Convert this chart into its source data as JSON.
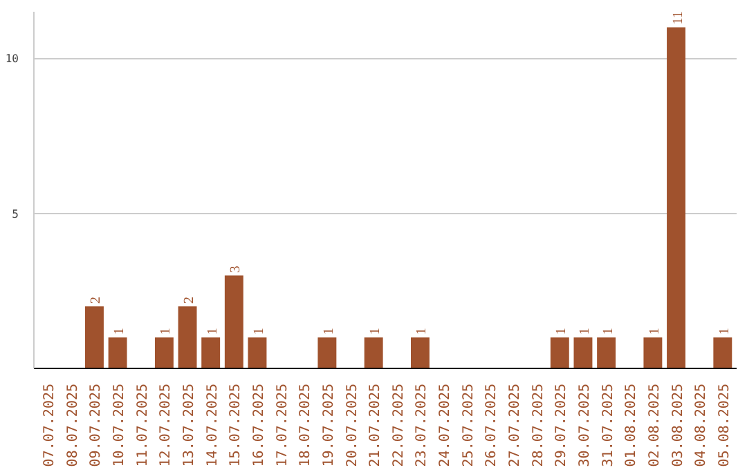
{
  "chart_data": {
    "type": "bar",
    "categories": [
      "07.07.2025",
      "08.07.2025",
      "09.07.2025",
      "10.07.2025",
      "11.07.2025",
      "12.07.2025",
      "13.07.2025",
      "14.07.2025",
      "15.07.2025",
      "16.07.2025",
      "17.07.2025",
      "18.07.2025",
      "19.07.2025",
      "20.07.2025",
      "21.07.2025",
      "22.07.2025",
      "23.07.2025",
      "24.07.2025",
      "25.07.2025",
      "26.07.2025",
      "27.07.2025",
      "28.07.2025",
      "29.07.2025",
      "30.07.2025",
      "31.07.2025",
      "01.08.2025",
      "02.08.2025",
      "03.08.2025",
      "04.08.2025",
      "05.08.2025"
    ],
    "values": [
      0,
      0,
      2,
      1,
      0,
      1,
      2,
      1,
      3,
      1,
      0,
      0,
      1,
      0,
      1,
      0,
      1,
      0,
      0,
      0,
      0,
      0,
      1,
      1,
      1,
      0,
      1,
      11,
      0,
      1
    ],
    "value_labels": [
      null,
      null,
      "2",
      "1",
      null,
      "1",
      "2",
      "1",
      "3",
      "1",
      null,
      null,
      "1",
      null,
      "1",
      null,
      "1",
      null,
      null,
      null,
      null,
      null,
      "1",
      "1",
      "1",
      null,
      "1",
      "11",
      null,
      "1"
    ],
    "color": "#a0522d",
    "ylim": [
      0,
      11.5
    ],
    "yticks": [
      5,
      10
    ],
    "grid": "y"
  }
}
